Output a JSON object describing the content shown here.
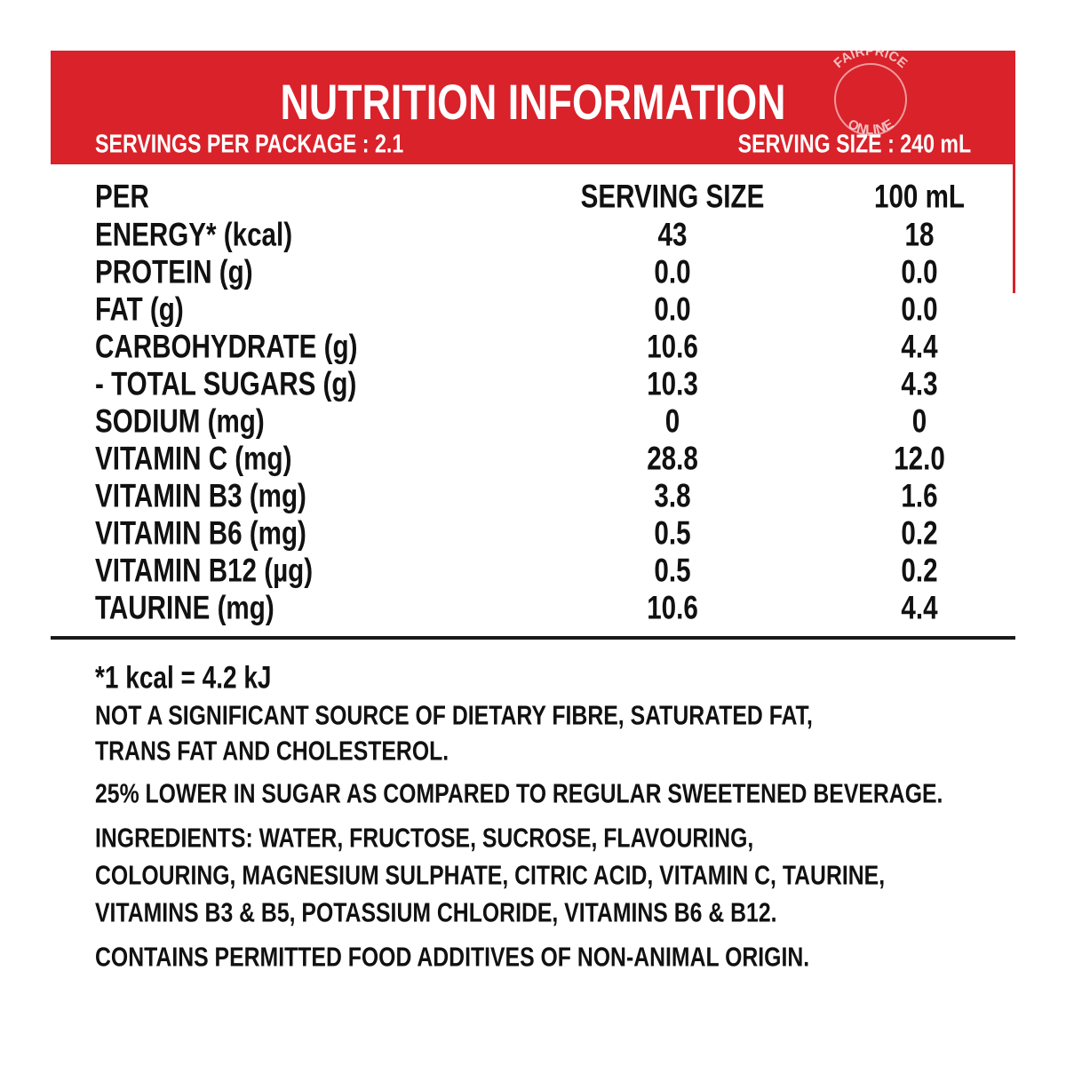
{
  "header": {
    "title": "NUTRITION INFORMATION",
    "servings_per_package": "SERVINGS PER PACKAGE : 2.1",
    "serving_size": "SERVING SIZE : 240 mL",
    "watermark": [
      "FAIRPRICE",
      "ONLINE"
    ]
  },
  "table": {
    "columns": [
      "PER",
      "SERVING SIZE",
      "100 mL"
    ],
    "rows": [
      [
        "ENERGY* (kcal)",
        "43",
        "18"
      ],
      [
        "PROTEIN (g)",
        "0.0",
        "0.0"
      ],
      [
        "FAT (g)",
        "0.0",
        "0.0"
      ],
      [
        "CARBOHYDRATE (g)",
        "10.6",
        "4.4"
      ],
      [
        "- TOTAL SUGARS (g)",
        "10.3",
        "4.3"
      ],
      [
        "SODIUM (mg)",
        "0",
        "0"
      ],
      [
        "VITAMIN C (mg)",
        "28.8",
        "12.0"
      ],
      [
        "VITAMIN B3 (mg)",
        "3.8",
        "1.6"
      ],
      [
        "VITAMIN B6 (mg)",
        "0.5",
        "0.2"
      ],
      [
        "VITAMIN B12 (µg)",
        "0.5",
        "0.2"
      ],
      [
        "TAURINE (mg)",
        "10.6",
        "4.4"
      ]
    ]
  },
  "notes": {
    "energy_note": "*1 kcal = 4.2 kJ",
    "not_significant": [
      "NOT A SIGNIFICANT SOURCE OF DIETARY FIBRE, SATURATED FAT,",
      "TRANS FAT AND CHOLESTEROL."
    ],
    "sugar_claim": "25% LOWER IN SUGAR AS COMPARED TO REGULAR SWEETENED BEVERAGE.",
    "ingredients": [
      "INGREDIENTS: WATER, FRUCTOSE, SUCROSE, FLAVOURING,",
      "COLOURING, MAGNESIUM SULPHATE, CITRIC ACID, VITAMIN C, TAURINE,",
      "VITAMINS B3 & B5, POTASSIUM CHLORIDE, VITAMINS B6 & B12."
    ],
    "additives": "CONTAINS PERMITTED FOOD ADDITIVES OF NON-ANIMAL ORIGIN."
  }
}
